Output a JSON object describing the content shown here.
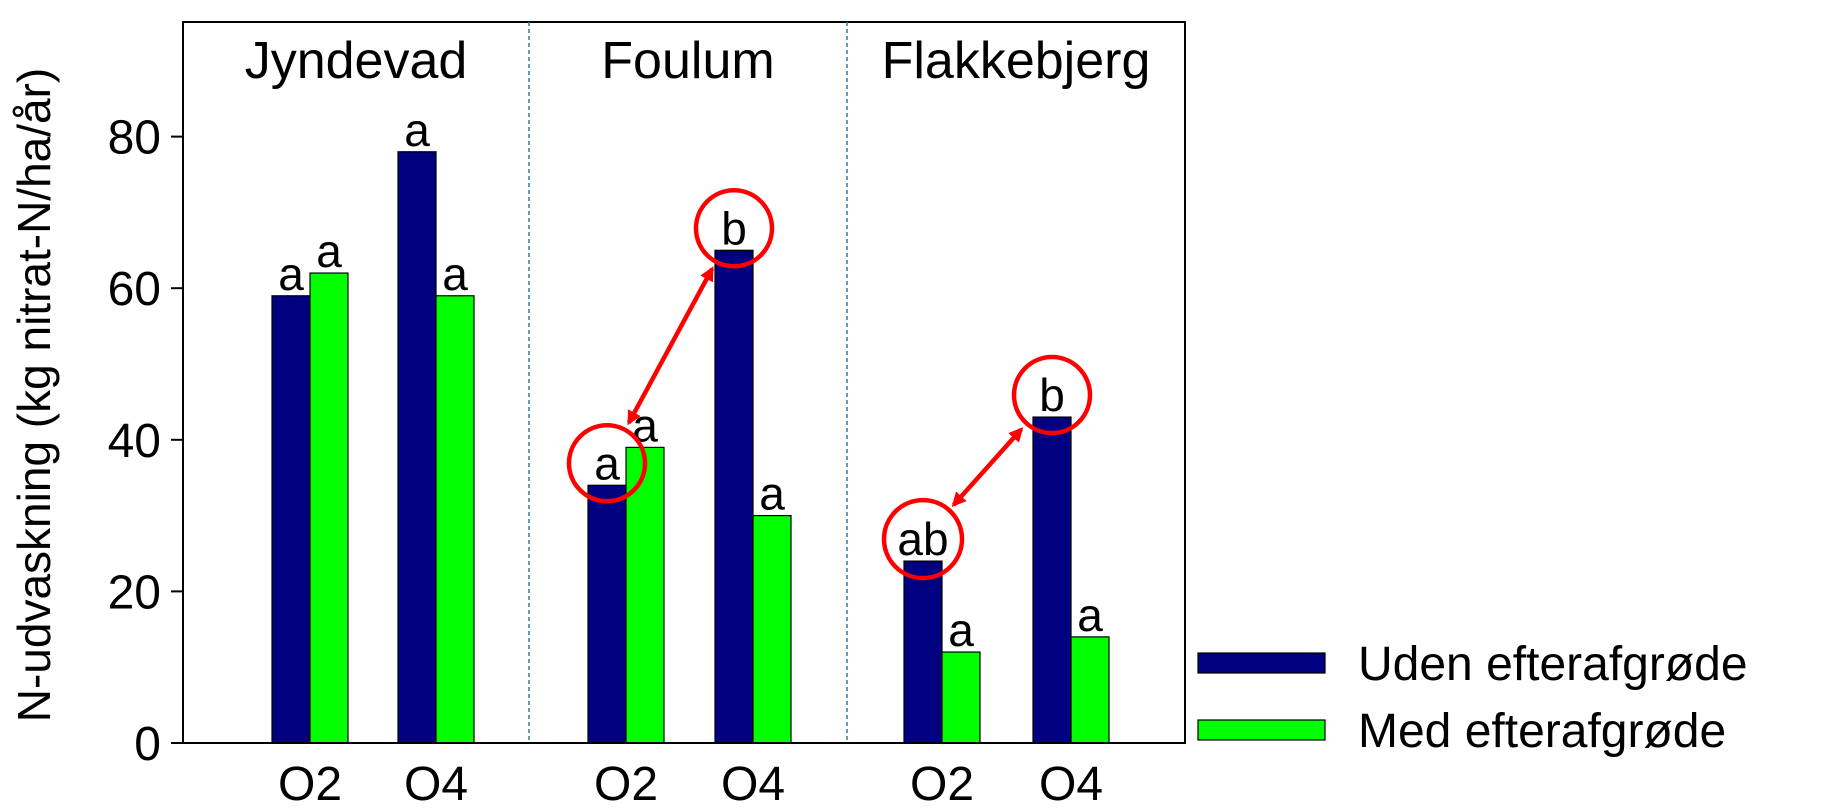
{
  "chart_data": {
    "type": "bar",
    "ylabel": "N-udvaskning (kg nitrat-N/ha/år)",
    "ylim": [
      0,
      95
    ],
    "yticks": [
      0,
      20,
      40,
      60,
      80
    ],
    "grid": false,
    "legend_position": "bottom-right",
    "panels": [
      {
        "site": "Jyndevad",
        "categories": [
          "O2",
          "O4"
        ],
        "values": [
          [
            59,
            62
          ],
          [
            78,
            59
          ]
        ],
        "letters": [
          [
            "a",
            "a"
          ],
          [
            "a",
            "a"
          ]
        ],
        "circled": []
      },
      {
        "site": "Foulum",
        "categories": [
          "O2",
          "O4"
        ],
        "values": [
          [
            34,
            39
          ],
          [
            65,
            30
          ]
        ],
        "letters": [
          [
            "a",
            "a"
          ],
          [
            "b",
            "a"
          ]
        ],
        "circled": [
          [
            0,
            0
          ],
          [
            1,
            0
          ]
        ]
      },
      {
        "site": "Flakkebjerg",
        "categories": [
          "O2",
          "O4"
        ],
        "values": [
          [
            24,
            12
          ],
          [
            43,
            14
          ]
        ],
        "letters": [
          [
            "ab",
            "a"
          ],
          [
            "b",
            "a"
          ]
        ],
        "circled": [
          [
            0,
            0
          ],
          [
            1,
            0
          ]
        ]
      }
    ],
    "series": [
      {
        "name": "Uden efterafgrøde",
        "color": "#000080"
      },
      {
        "name": "Med efterafgrøde",
        "color": "#00ff00"
      }
    ],
    "annotation_color": "#ff0000"
  }
}
